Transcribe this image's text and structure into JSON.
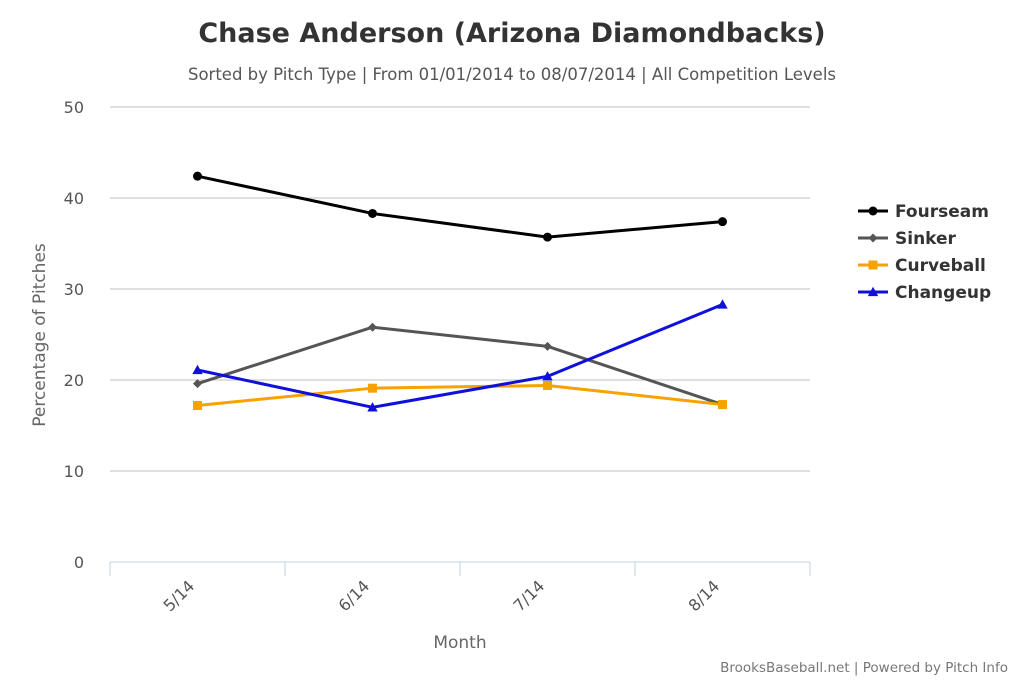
{
  "chart_data": {
    "type": "line",
    "title": "Chase Anderson (Arizona Diamondbacks)",
    "subtitle": "Sorted by Pitch Type | From 01/01/2014 to 08/07/2014 | All Competition Levels",
    "xlabel": "Month",
    "ylabel": "Percentage of Pitches",
    "categories": [
      "5/14",
      "6/14",
      "7/14",
      "8/14"
    ],
    "ylim": [
      0,
      50
    ],
    "yticks": [
      0,
      10,
      20,
      30,
      40,
      50
    ],
    "grid": true,
    "legend_position": "right",
    "series": [
      {
        "name": "Fourseam",
        "color": "#000000",
        "marker": "circle",
        "values": [
          42.4,
          38.3,
          35.7,
          37.4
        ]
      },
      {
        "name": "Sinker",
        "color": "#555555",
        "marker": "diamond",
        "values": [
          19.6,
          25.8,
          23.7,
          17.3
        ]
      },
      {
        "name": "Curveball",
        "color": "#f7a200",
        "marker": "square",
        "values": [
          17.2,
          19.1,
          19.4,
          17.3
        ]
      },
      {
        "name": "Changeup",
        "color": "#1010dd",
        "marker": "triangle",
        "values": [
          21.1,
          17.0,
          20.4,
          28.3
        ]
      }
    ]
  },
  "credits": "BrooksBaseball.net | Powered by Pitch Info"
}
